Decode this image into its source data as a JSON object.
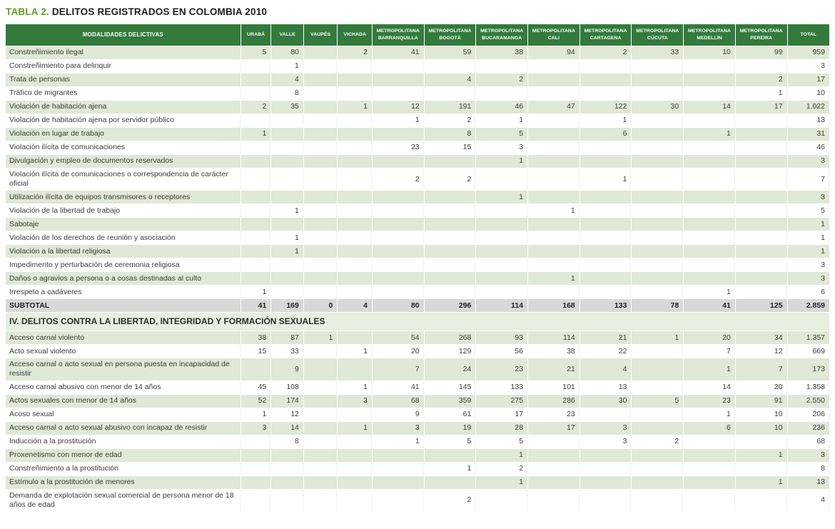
{
  "title": {
    "prefix": "TABLA 2.",
    "text": "DELITOS REGISTRADOS EN COLOMBIA 2010"
  },
  "colors": {
    "header_green": "#337a3c",
    "row_green": "#dfe9d5",
    "section_green": "#e7efe0",
    "subtotal_gray": "#d8d8d8",
    "title_green": "#5f9e27"
  },
  "table": {
    "columns": [
      "MODALIDADES DELICTIVAS",
      "URABÁ",
      "VALLE",
      "VAUPÉS",
      "VICHADA",
      "METROPOLITANA BARRANQUILLA",
      "METROPOLITANA BOGOTÁ",
      "METROPOLITANA BUCARAMANGA",
      "METROPOLITANA CALI",
      "METROPOLITANA CARTAGENA",
      "METROPOLITANA CÚCUTA",
      "METROPOLITANA MEDELLÍN",
      "METROPOLITANA PEREIRA",
      "TOTAL"
    ],
    "rows": [
      {
        "label": "Constreñimiento ilegal",
        "values": [
          "5",
          "80",
          "",
          "2",
          "41",
          "59",
          "38",
          "94",
          "2",
          "33",
          "10",
          "99",
          "959"
        ]
      },
      {
        "label": "Constreñimiento para delinquir",
        "values": [
          "",
          "1",
          "",
          "",
          "",
          "",
          "",
          "",
          "",
          "",
          "",
          "",
          "3"
        ]
      },
      {
        "label": "Trata de personas",
        "values": [
          "",
          "4",
          "",
          "",
          "",
          "4",
          "2",
          "",
          "",
          "",
          "",
          "2",
          "17"
        ]
      },
      {
        "label": "Tráfico de migrantes",
        "values": [
          "",
          "8",
          "",
          "",
          "",
          "",
          "",
          "",
          "",
          "",
          "",
          "1",
          "10"
        ]
      },
      {
        "label": "Violación de habitación ajena",
        "values": [
          "2",
          "35",
          "",
          "1",
          "12",
          "191",
          "46",
          "47",
          "122",
          "30",
          "14",
          "17",
          "1.022"
        ]
      },
      {
        "label": "Violación de habitación ajena por servidor público",
        "values": [
          "",
          "",
          "",
          "",
          "1",
          "2",
          "1",
          "",
          "1",
          "",
          "",
          "",
          "13"
        ]
      },
      {
        "label": "Violación en lugar de trabajo",
        "values": [
          "1",
          "",
          "",
          "",
          "",
          "8",
          "5",
          "",
          "6",
          "",
          "1",
          "",
          "31"
        ]
      },
      {
        "label": "Violación ilícita de comunicaciones",
        "values": [
          "",
          "",
          "",
          "",
          "23",
          "15",
          "3",
          "",
          "",
          "",
          "",
          "",
          "46"
        ]
      },
      {
        "label": "Divulgación y empleo de documentos reservados",
        "values": [
          "",
          "",
          "",
          "",
          "",
          "",
          "1",
          "",
          "",
          "",
          "",
          "",
          "3"
        ]
      },
      {
        "label": "Violación ilícita de comunicaciones o correspondencia de carácter oficial",
        "values": [
          "",
          "",
          "",
          "",
          "2",
          "2",
          "",
          "",
          "1",
          "",
          "",
          "",
          "7"
        ]
      },
      {
        "label": "Utilización ilícita de equipos transmisores o receptores",
        "values": [
          "",
          "",
          "",
          "",
          "",
          "",
          "1",
          "",
          "",
          "",
          "",
          "",
          "3"
        ]
      },
      {
        "label": "Violación de la libertad de trabajo",
        "values": [
          "",
          "1",
          "",
          "",
          "",
          "",
          "",
          "1",
          "",
          "",
          "",
          "",
          "5"
        ]
      },
      {
        "label": "Sabotaje",
        "values": [
          "",
          "",
          "",
          "",
          "",
          "",
          "",
          "",
          "",
          "",
          "",
          "",
          "1"
        ]
      },
      {
        "label": "Violación de los derechos de reunión y asociación",
        "values": [
          "",
          "1",
          "",
          "",
          "",
          "",
          "",
          "",
          "",
          "",
          "",
          "",
          "1"
        ]
      },
      {
        "label": "Violación a la libertad religiosa",
        "values": [
          "",
          "1",
          "",
          "",
          "",
          "",
          "",
          "",
          "",
          "",
          "",
          "",
          "1"
        ]
      },
      {
        "label": "Impedimento y perturbación de ceremonia religiosa",
        "values": [
          "",
          "",
          "",
          "",
          "",
          "",
          "",
          "",
          "",
          "",
          "",
          "",
          "3"
        ]
      },
      {
        "label": "Daños o agravios a persona o a cosas destinadas al culto",
        "values": [
          "",
          "",
          "",
          "",
          "",
          "",
          "",
          "1",
          "",
          "",
          "",
          "",
          "3"
        ]
      },
      {
        "label": "Irrespeto a cadáveres",
        "values": [
          "1",
          "",
          "",
          "",
          "",
          "",
          "",
          "",
          "",
          "",
          "1",
          "",
          "6"
        ]
      },
      {
        "label": "SUBTOTAL",
        "type": "subtotal",
        "values": [
          "41",
          "169",
          "0",
          "4",
          "80",
          "296",
          "114",
          "168",
          "133",
          "78",
          "41",
          "125",
          "2.859"
        ]
      },
      {
        "label": "IV. DELITOS CONTRA LA LIBERTAD, INTEGRIDAD Y FORMACIÓN SEXUALES",
        "type": "section"
      },
      {
        "label": "Acceso carnal violento",
        "values": [
          "38",
          "87",
          "1",
          "",
          "54",
          "268",
          "93",
          "114",
          "21",
          "1",
          "20",
          "34",
          "1.357"
        ]
      },
      {
        "label": "Acto sexual violento",
        "values": [
          "15",
          "33",
          "",
          "1",
          "20",
          "129",
          "56",
          "38",
          "22",
          "",
          "7",
          "12",
          "669"
        ]
      },
      {
        "label": "Acceso carnal o acto sexual en persona puesta en incapacidad de resistir",
        "values": [
          "",
          "9",
          "",
          "",
          "7",
          "24",
          "23",
          "21",
          "4",
          "",
          "1",
          "7",
          "173"
        ]
      },
      {
        "label": "Acceso carnal abusivo con menor de 14 años",
        "values": [
          "45",
          "108",
          "",
          "1",
          "41",
          "145",
          "133",
          "101",
          "13",
          "",
          "14",
          "20",
          "1.358"
        ]
      },
      {
        "label": "Actos sexuales con menor de 14 años",
        "values": [
          "52",
          "174",
          "",
          "3",
          "68",
          "359",
          "275",
          "286",
          "30",
          "5",
          "23",
          "91",
          "2.550"
        ]
      },
      {
        "label": "Acoso sexual",
        "values": [
          "1",
          "12",
          "",
          "",
          "9",
          "61",
          "17",
          "23",
          "",
          "",
          "1",
          "10",
          "206"
        ]
      },
      {
        "label": "Acceso carnal o acto sexual abusivo con incapaz de resistir",
        "values": [
          "3",
          "14",
          "",
          "1",
          "3",
          "19",
          "28",
          "17",
          "3",
          "",
          "6",
          "10",
          "236"
        ]
      },
      {
        "label": "Inducción a la prostitución",
        "values": [
          "",
          "8",
          "",
          "",
          "1",
          "5",
          "5",
          "",
          "3",
          "2",
          "",
          "",
          "68"
        ]
      },
      {
        "label": "Proxenetismo con menor de edad",
        "values": [
          "",
          "",
          "",
          "",
          "",
          "",
          "1",
          "",
          "",
          "",
          "",
          "1",
          "3"
        ]
      },
      {
        "label": "Constreñimiento a la prostitución",
        "values": [
          "",
          "",
          "",
          "",
          "",
          "1",
          "2",
          "",
          "",
          "",
          "",
          "",
          "8"
        ]
      },
      {
        "label": "Estímulo a la prostitución de menores",
        "values": [
          "",
          "",
          "",
          "",
          "",
          "",
          "1",
          "",
          "",
          "",
          "",
          "1",
          "13"
        ]
      },
      {
        "label": "Demanda de explotación sexual comercial de persona menor de 18 años de edad",
        "values": [
          "",
          "",
          "",
          "",
          "",
          "2",
          "",
          "",
          "",
          "",
          "",
          "",
          "4"
        ]
      }
    ]
  }
}
